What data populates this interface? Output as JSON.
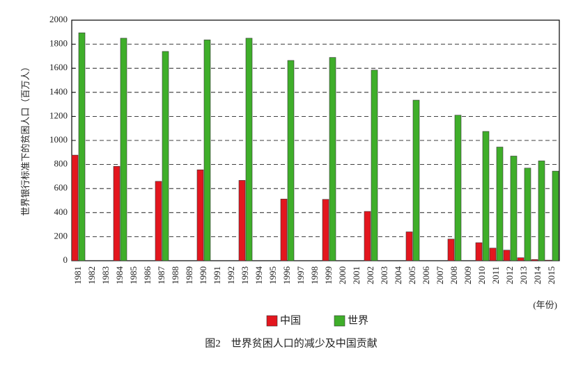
{
  "chart_data": {
    "type": "bar",
    "caption": "图2　世界贫困人口的减少及中国贡献",
    "y_label": "世界银行标准下的贫困人口（百万人）",
    "x_label": "(年份)",
    "categories": [
      "1981",
      "1982",
      "1983",
      "1984",
      "1985",
      "1986",
      "1987",
      "1988",
      "1989",
      "1990",
      "1991",
      "1992",
      "1993",
      "1994",
      "1995",
      "1996",
      "1997",
      "1998",
      "1999",
      "2000",
      "2001",
      "2002",
      "2003",
      "2004",
      "2005",
      "2006",
      "2007",
      "2008",
      "2009",
      "2010",
      "2011",
      "2012",
      "2013",
      "2014",
      "2015"
    ],
    "series": [
      {
        "name": "中国",
        "color": "#e3161e",
        "values": [
          878,
          null,
          null,
          785,
          null,
          null,
          660,
          null,
          null,
          756,
          null,
          null,
          668,
          null,
          null,
          513,
          null,
          null,
          510,
          null,
          null,
          410,
          null,
          null,
          240,
          null,
          null,
          180,
          null,
          150,
          105,
          88,
          25,
          10,
          5
        ]
      },
      {
        "name": "世界",
        "color": "#3fae2a",
        "values": [
          1895,
          null,
          null,
          1850,
          null,
          null,
          1740,
          null,
          null,
          1836,
          null,
          null,
          1850,
          null,
          null,
          1665,
          null,
          null,
          1690,
          null,
          null,
          1585,
          null,
          null,
          1335,
          null,
          null,
          1210,
          null,
          1075,
          945,
          870,
          770,
          830,
          745
        ]
      }
    ],
    "ylim": [
      0,
      2000
    ],
    "yticks": [
      0,
      200,
      400,
      600,
      800,
      1000,
      1200,
      1400,
      1600,
      1800,
      2000
    ],
    "grid": true
  }
}
